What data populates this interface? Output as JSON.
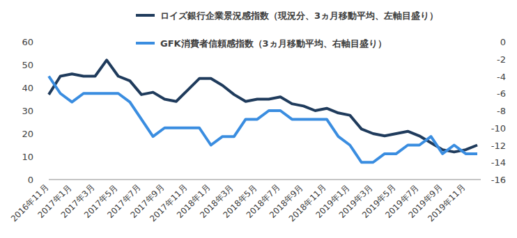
{
  "chart_data": {
    "type": "line",
    "categories": [
      "2016年11月",
      null,
      "2017年1月",
      null,
      "2017年3月",
      null,
      "2017年5月",
      null,
      "2017年7月",
      null,
      "2017年9月",
      null,
      "2017年11月",
      null,
      "2018年1月",
      null,
      "2018年3月",
      null,
      "2018年5月",
      null,
      "2018年7月",
      null,
      "2018年9月",
      null,
      "2018年11月",
      null,
      "2019年1月",
      null,
      "2019年3月",
      null,
      "2019年5月",
      null,
      "2019年7月",
      null,
      "2019年9月",
      null,
      "2019年11月",
      null
    ],
    "series": [
      {
        "name": "ロイズ銀行企業景況感指数（現況分、3ヵ月移動平均、左軸目盛り）",
        "color": "#1f3b5c",
        "values": [
          37,
          45,
          46,
          45,
          45,
          52,
          45,
          43,
          37,
          38,
          35,
          34,
          39,
          44,
          44,
          41,
          37,
          34,
          35,
          35,
          36,
          33,
          32,
          30,
          31,
          29,
          28,
          22,
          20,
          19,
          20,
          21,
          19,
          16,
          13,
          12,
          13,
          15
        ]
      },
      {
        "name": "GFK消費者信頼感指数（3ヵ月移動平均、右軸目盛り）",
        "color": "#3a8de0",
        "axis": "y2",
        "values": [
          -4,
          -6,
          -7,
          -6,
          -6,
          -6,
          -6,
          -7,
          -9,
          -11,
          -10,
          -10,
          -10,
          -10,
          -12,
          -11,
          -11,
          -9,
          -9,
          -8,
          -8,
          -9,
          -9,
          -9,
          -9,
          -11,
          -12,
          -14,
          -14,
          -13,
          -13,
          -12,
          -12,
          -11,
          -13,
          -12,
          -13,
          -13
        ]
      }
    ],
    "ylim": [
      0,
      60
    ],
    "yticks": [
      0,
      10,
      20,
      30,
      40,
      50,
      60
    ],
    "y2lim": [
      -16,
      0
    ],
    "y2ticks": [
      -16,
      -14,
      -12,
      -10,
      -8,
      -6,
      -4,
      -2,
      0
    ],
    "grid": false,
    "legend": "top"
  }
}
